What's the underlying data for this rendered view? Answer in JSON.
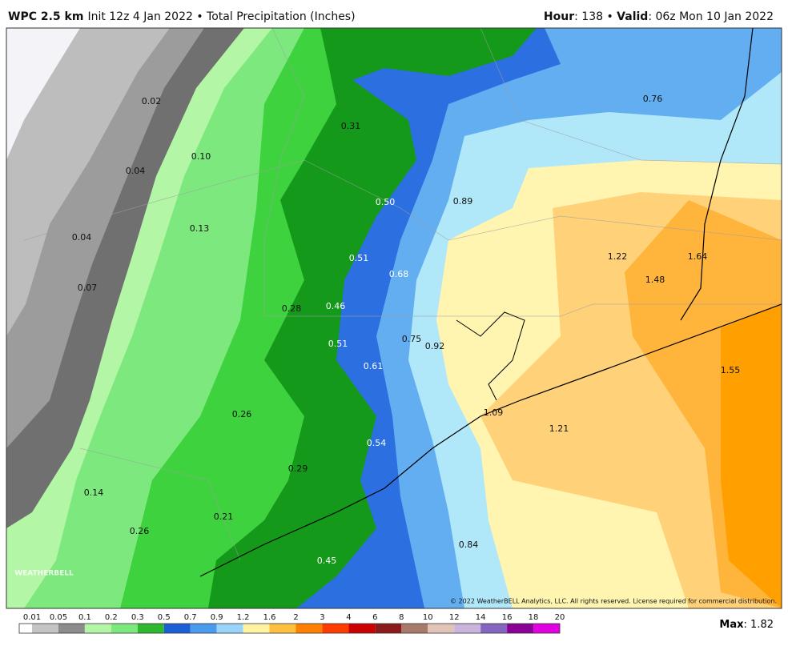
{
  "header": {
    "title": "WPC 2.5 km",
    "subtitle": "Init 12z 4 Jan 2022 • Total Precipitation (Inches)",
    "hour_label": "Hour",
    "hour": ": 138 • ",
    "valid_label": "Valid",
    "valid": ": 06z Mon 10 Jan 2022"
  },
  "map": {
    "labels": [
      "0.02",
      "0.31",
      "0.10",
      "0.04",
      "0.50",
      "0.89",
      "0.76",
      "0.13",
      "0.04",
      "0.51",
      "0.68",
      "1.22",
      "1.64",
      "1.48",
      "0.07",
      "0.28",
      "0.46",
      "0.75",
      "0.92",
      "0.51",
      "0.61",
      "1.55",
      "1.09",
      "0.26",
      "1.21",
      "0.54",
      "0.29",
      "0.14",
      "0.21",
      "0.26",
      "0.84",
      "0.45"
    ],
    "logo": "WEATHERBELL",
    "copyright": "© 2022 WeatherBELL Analytics, LLC. All rights reserved. License required for commercial distribution."
  },
  "legend": {
    "ticks": [
      "0.01",
      "0.05",
      "0.1",
      "0.2",
      "0.3",
      "0.5",
      "0.7",
      "0.9",
      "1.2",
      "1.6",
      "2",
      "3",
      "4",
      "6",
      "8",
      "10",
      "12",
      "14",
      "16",
      "18",
      "20"
    ],
    "colors": [
      "#ffffff",
      "#c4c4c4",
      "#8c8c8c",
      "#b3f7a6",
      "#7de87d",
      "#2fb82f",
      "#1a5fd6",
      "#4a9bee",
      "#9ad4f8",
      "#fff2a0",
      "#ffc040",
      "#ff8000",
      "#ff3c00",
      "#cc0000",
      "#8b1a1a",
      "#a87a6c",
      "#e0c4b8",
      "#c8b4dc",
      "#8466c0",
      "#8a0096",
      "#e000e0"
    ]
  },
  "footer": {
    "max_label": "Max",
    "max": ": 1.82"
  }
}
